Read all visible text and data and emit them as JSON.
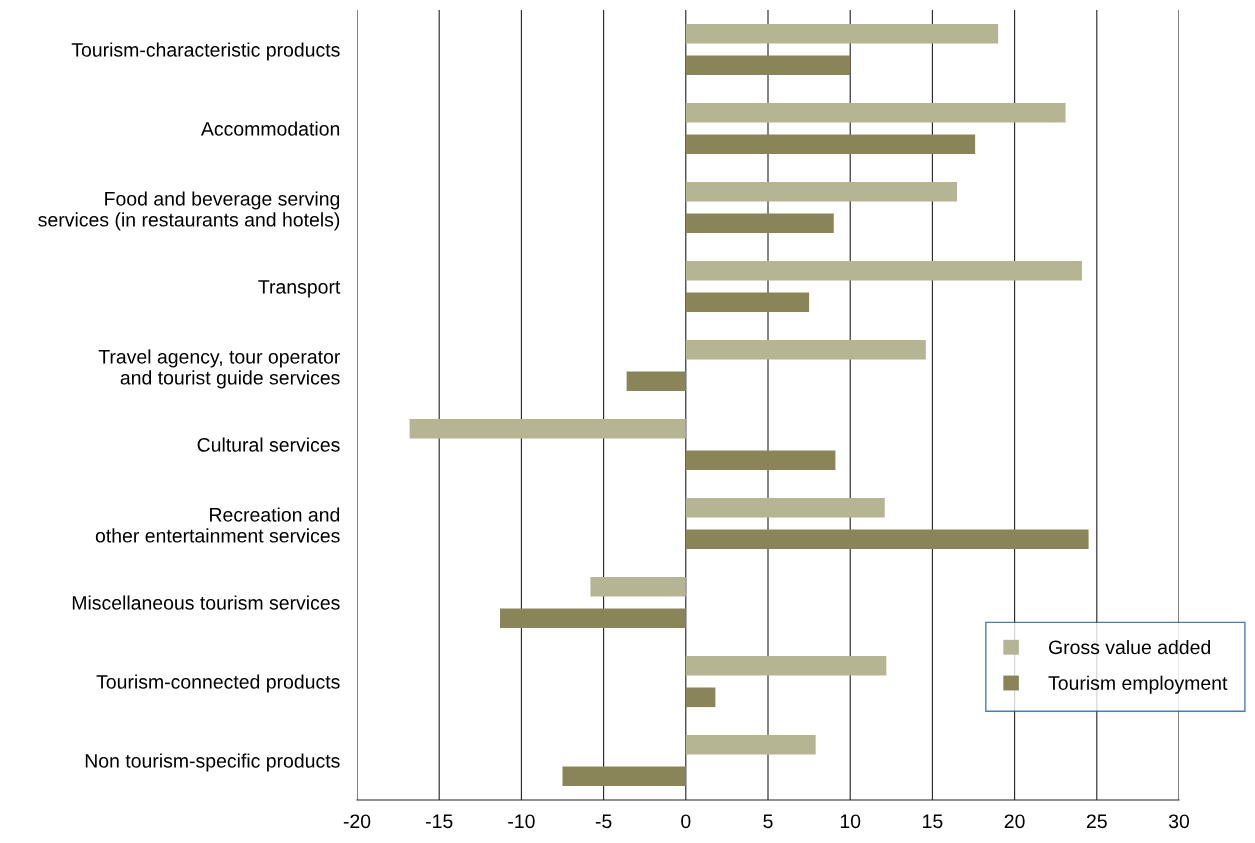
{
  "chart_data": {
    "type": "bar",
    "orientation": "horizontal",
    "categories": [
      "Tourism-characteristic products",
      "Accommodation",
      "Food and beverage serving\nservices (in restaurants and hotels)",
      "Transport",
      "Travel agency, tour operator\nand tourist guide services",
      "Cultural services",
      "Recreation and\nother entertainment services",
      "Miscellaneous tourism services",
      "Tourism-connected products",
      "Non tourism-specific products"
    ],
    "series": [
      {
        "name": "Gross value added",
        "color": "#b5b493",
        "values": [
          19.0,
          23.1,
          16.5,
          24.1,
          14.6,
          -16.8,
          12.1,
          -5.8,
          12.2,
          7.9
        ]
      },
      {
        "name": "Tourism employment",
        "color": "#8a8558",
        "values": [
          10.0,
          17.6,
          9.0,
          7.5,
          -3.6,
          9.1,
          24.5,
          -11.3,
          1.8,
          -7.5
        ]
      }
    ],
    "xlim": [
      -20,
      30
    ],
    "xticks": [
      -20,
      -15,
      -10,
      -5,
      0,
      5,
      10,
      15,
      20,
      25,
      30
    ],
    "grid": "x",
    "legend": "bottom right"
  }
}
